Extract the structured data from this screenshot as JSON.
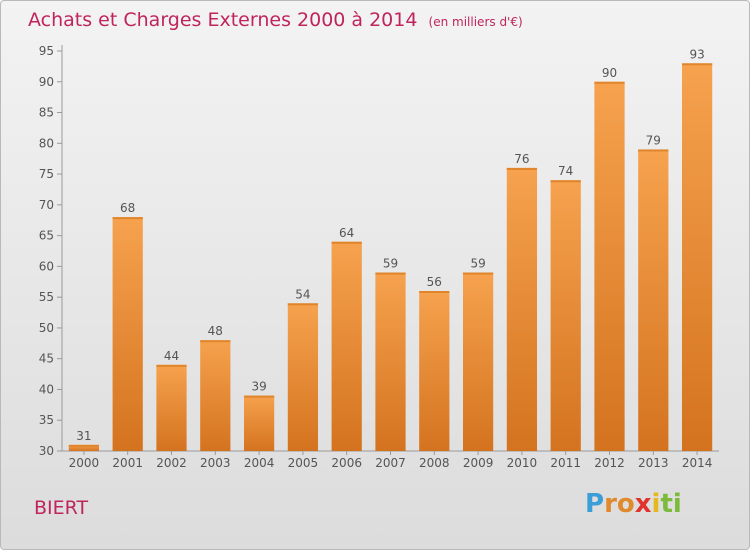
{
  "chart_data": {
    "type": "bar",
    "title": "Achats et Charges Externes 2000 à 2014",
    "unit": "(en milliers d'€)",
    "categories": [
      "2000",
      "2001",
      "2002",
      "2003",
      "2004",
      "2005",
      "2006",
      "2007",
      "2008",
      "2009",
      "2010",
      "2011",
      "2012",
      "2013",
      "2014"
    ],
    "values": [
      31,
      68,
      44,
      48,
      39,
      54,
      64,
      59,
      56,
      59,
      76,
      74,
      90,
      79,
      93
    ],
    "ylim": [
      30,
      95
    ],
    "yticks": [
      30,
      35,
      40,
      45,
      50,
      55,
      60,
      65,
      70,
      75,
      80,
      85,
      90,
      95
    ],
    "grid": false,
    "bar_color_top": "#f6a24e",
    "bar_color_bottom": "#d4731f"
  },
  "footer": {
    "commune": "BIERT",
    "logo_letters": [
      "P",
      "r",
      "o",
      "x",
      "i",
      "t",
      "i"
    ],
    "logo_colors": [
      "#3b9ed8",
      "#e08a2d",
      "#e08a2d",
      "#e0342d",
      "#e6b820",
      "#7cba3a",
      "#7cba3a"
    ]
  }
}
